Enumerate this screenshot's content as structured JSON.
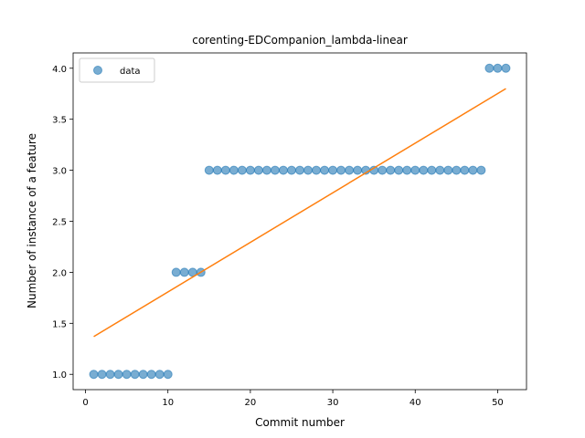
{
  "chart_data": {
    "type": "scatter",
    "title": "corenting-EDCompanion_lambda-linear",
    "xlabel": "Commit number",
    "ylabel": "Number of instance of a feature",
    "xlim": [
      -1.5,
      53.5
    ],
    "ylim": [
      0.85,
      4.15
    ],
    "x_ticks": [
      0,
      10,
      20,
      30,
      40,
      50
    ],
    "x_tick_labels": [
      "0",
      "10",
      "20",
      "30",
      "40",
      "50"
    ],
    "y_ticks": [
      1.0,
      1.5,
      2.0,
      2.5,
      3.0,
      3.5,
      4.0
    ],
    "y_tick_labels": [
      "1.0",
      "1.5",
      "2.0",
      "2.5",
      "3.0",
      "3.5",
      "4.0"
    ],
    "grid": false,
    "legend_position": "top-left",
    "series": [
      {
        "name": "data",
        "kind": "scatter",
        "color": "#1f77b4",
        "x": [
          1,
          2,
          3,
          4,
          5,
          6,
          7,
          8,
          9,
          10,
          11,
          12,
          13,
          14,
          15,
          16,
          17,
          18,
          19,
          20,
          21,
          22,
          23,
          24,
          25,
          26,
          27,
          28,
          29,
          30,
          31,
          32,
          33,
          34,
          35,
          36,
          37,
          38,
          39,
          40,
          41,
          42,
          43,
          44,
          45,
          46,
          47,
          48,
          49,
          50,
          51
        ],
        "y": [
          1,
          1,
          1,
          1,
          1,
          1,
          1,
          1,
          1,
          1,
          2,
          2,
          2,
          2,
          3,
          3,
          3,
          3,
          3,
          3,
          3,
          3,
          3,
          3,
          3,
          3,
          3,
          3,
          3,
          3,
          3,
          3,
          3,
          3,
          3,
          3,
          3,
          3,
          3,
          3,
          3,
          3,
          3,
          3,
          3,
          3,
          3,
          3,
          4,
          4,
          4
        ]
      },
      {
        "kind": "line",
        "color": "#ff7f0e",
        "x": [
          1,
          51
        ],
        "y": [
          1.37,
          3.8
        ]
      }
    ]
  }
}
